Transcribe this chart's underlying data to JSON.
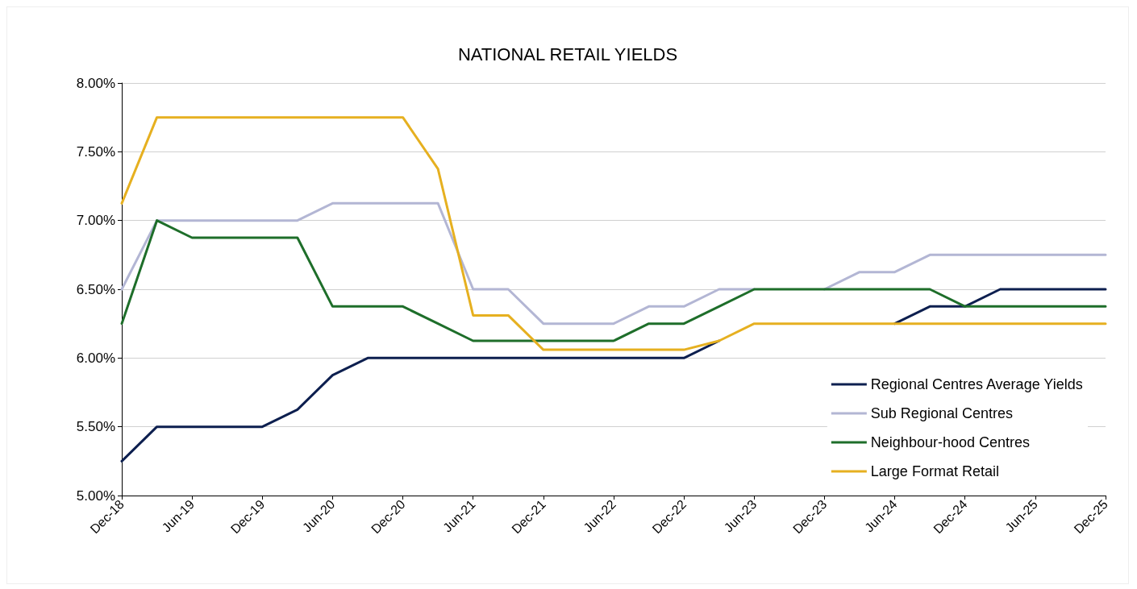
{
  "chart_data": {
    "type": "line",
    "title": "NATIONAL RETAIL YIELDS",
    "categories": [
      "Dec-18",
      null,
      "Jun-19",
      null,
      "Dec-19",
      null,
      "Jun-20",
      null,
      "Dec-20",
      null,
      "Jun-21",
      null,
      "Dec-21",
      null,
      "Jun-22",
      null,
      "Dec-22",
      null,
      "Jun-23",
      null,
      "Dec-23",
      null,
      "Jun-24",
      null,
      "Dec-24",
      null,
      "Jun-25",
      null,
      "Dec-25"
    ],
    "series": [
      {
        "name": "Regional Centres Average Yields",
        "color": "#0d1f4f",
        "values": [
          5.25,
          5.5,
          5.5,
          5.5,
          5.5,
          5.625,
          5.875,
          6.0,
          6.0,
          6.0,
          6.0,
          6.0,
          6.0,
          6.0,
          6.0,
          6.0,
          6.0,
          6.125,
          null,
          null,
          null,
          null,
          6.25,
          6.375,
          6.375,
          6.5,
          6.5,
          6.5,
          6.5
        ]
      },
      {
        "name": "Sub Regional Centres",
        "color": "#b3b6d4",
        "values": [
          6.5,
          7.0,
          7.0,
          7.0,
          7.0,
          7.0,
          7.125,
          7.125,
          7.125,
          7.125,
          6.5,
          6.5,
          6.25,
          6.25,
          6.25,
          6.375,
          6.375,
          6.5,
          6.5,
          null,
          6.5,
          6.625,
          6.625,
          6.75,
          6.75,
          6.75,
          6.75,
          6.75,
          6.75
        ]
      },
      {
        "name": "Neighbour-hood Centres",
        "color": "#1e6e2a",
        "values": [
          6.25,
          7.0,
          6.875,
          6.875,
          6.875,
          6.875,
          6.375,
          6.375,
          6.375,
          6.25,
          6.125,
          6.125,
          6.125,
          6.125,
          6.125,
          6.25,
          6.25,
          6.375,
          6.5,
          6.5,
          6.5,
          6.5,
          6.5,
          6.5,
          6.375,
          6.375,
          6.375,
          6.375,
          6.375
        ]
      },
      {
        "name": "Large Format Retail",
        "color": "#e6b020",
        "values": [
          7.125,
          7.75,
          7.75,
          7.75,
          7.75,
          7.75,
          7.75,
          7.75,
          7.75,
          7.375,
          6.31,
          6.31,
          6.06,
          6.06,
          6.06,
          6.06,
          6.06,
          6.125,
          6.25,
          6.25,
          6.25,
          6.25,
          6.25,
          6.25,
          6.25,
          6.25,
          6.25,
          6.25,
          6.25
        ]
      }
    ],
    "ylim": [
      5.0,
      8.0
    ],
    "yticks": [
      {
        "value": 5.0,
        "label": "5.00%"
      },
      {
        "value": 5.5,
        "label": "5.50%"
      },
      {
        "value": 6.0,
        "label": "6.00%"
      },
      {
        "value": 6.5,
        "label": "6.50%"
      },
      {
        "value": 7.0,
        "label": "7.00%"
      },
      {
        "value": 7.5,
        "label": "7.50%"
      },
      {
        "value": 8.0,
        "label": "8.00%"
      }
    ],
    "grid": "y",
    "legend": "bottom right",
    "marker": "none",
    "line_style": "solid"
  }
}
